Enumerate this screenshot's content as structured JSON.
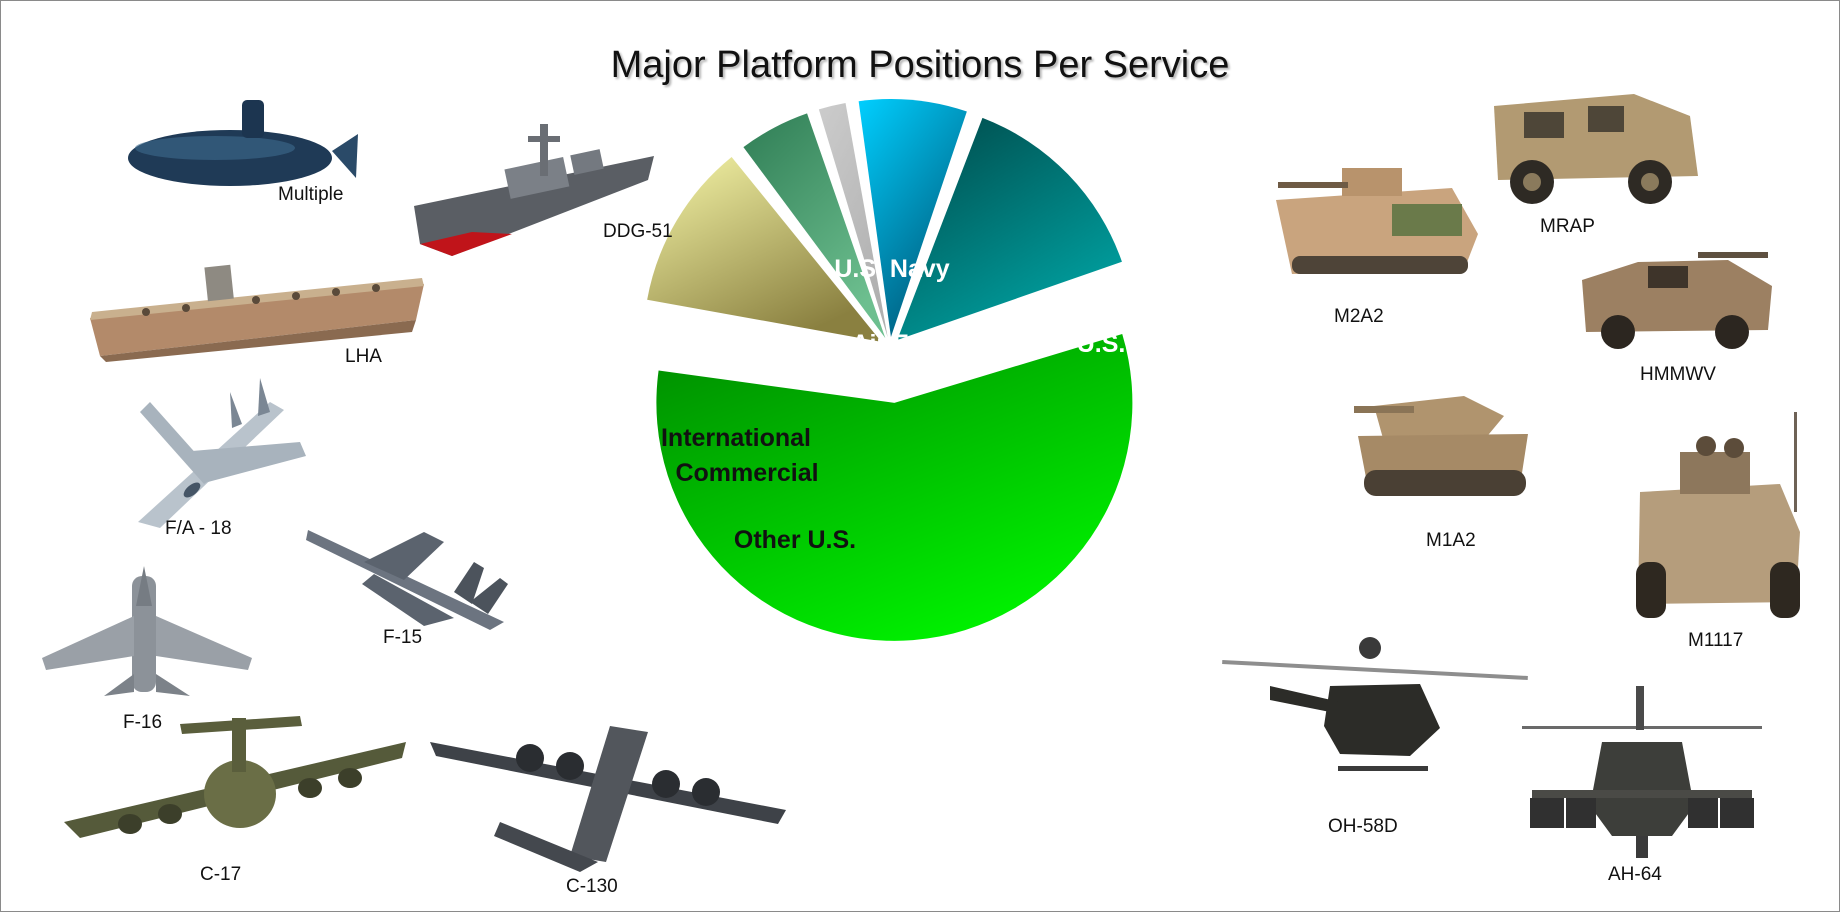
{
  "title": "Major Platform Positions Per Service",
  "chart_data": {
    "type": "pie",
    "title": "Major Platform Positions Per Service",
    "start_angle_deg": -18,
    "slices": [
      {
        "label": "U.S. Army",
        "value": 57.5,
        "color_from": "#008a00",
        "color_to": "#00f000",
        "text_color": "#ffffff",
        "explode": true
      },
      {
        "label": "Other U.S.",
        "value": 12.0,
        "color_from": "#f6f6a8",
        "color_to": "#8a8040",
        "text_color": "#111111",
        "explode": false
      },
      {
        "label": "Commercial",
        "value": 5.5,
        "color_from": "#2f7d55",
        "color_to": "#6dbf8f",
        "text_color": "#111111",
        "explode": false
      },
      {
        "label": "International",
        "value": 2.5,
        "color_from": "#cccccc",
        "color_to": "#b0b0b0",
        "text_color": "#111111",
        "explode": false
      },
      {
        "label": "U.S. Air Force",
        "value": 8.0,
        "color_from": "#00cfff",
        "color_to": "#005a7a",
        "text_color": "#ffffff",
        "explode": false
      },
      {
        "label": "U.S. Navy",
        "value": 14.5,
        "color_from": "#004848",
        "color_to": "#00a0a0",
        "text_color": "#ffffff",
        "explode": false
      }
    ]
  },
  "platforms": {
    "navy": [
      {
        "label": "Multiple",
        "icon": "submarine-icon"
      },
      {
        "label": "DDG-51",
        "icon": "destroyer-icon"
      },
      {
        "label": "LHA",
        "icon": "amphibious-assault-ship-icon"
      }
    ],
    "air_force": [
      {
        "label": "F/A - 18",
        "icon": "fighter-jet-icon"
      },
      {
        "label": "F-15",
        "icon": "fighter-jet-icon"
      },
      {
        "label": "F-16",
        "icon": "fighter-jet-icon"
      },
      {
        "label": "C-17",
        "icon": "cargo-plane-icon"
      },
      {
        "label": "C-130",
        "icon": "turboprop-plane-icon"
      }
    ],
    "army": [
      {
        "label": "MRAP",
        "icon": "armored-truck-icon"
      },
      {
        "label": "M2A2",
        "icon": "infantry-fighting-vehicle-icon"
      },
      {
        "label": "HMMWV",
        "icon": "humvee-icon"
      },
      {
        "label": "M1A2",
        "icon": "tank-icon"
      },
      {
        "label": "M1117",
        "icon": "armored-car-icon"
      },
      {
        "label": "OH-58D",
        "icon": "scout-helicopter-icon"
      },
      {
        "label": "AH-64",
        "icon": "attack-helicopter-icon"
      }
    ]
  }
}
